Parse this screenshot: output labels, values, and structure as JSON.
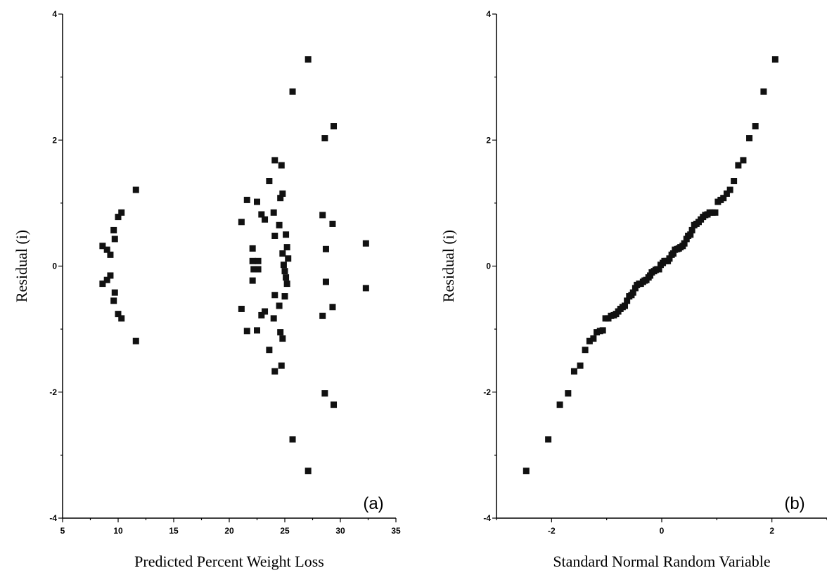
{
  "chart_data": [
    {
      "type": "scatter",
      "panel_label": "(a)",
      "xlabel": "Predicted Percent Weight Loss",
      "ylabel": "Residual (i)",
      "xlim": [
        5,
        35
      ],
      "ylim": [
        -4,
        4
      ],
      "xticks": [
        "5",
        "10",
        "15",
        "20",
        "25",
        "30",
        "35"
      ],
      "yticks": [
        "-4",
        "-2",
        "0",
        "2",
        "4"
      ],
      "points": [
        [
          8.6,
          0.32
        ],
        [
          9.0,
          0.26
        ],
        [
          9.3,
          0.18
        ],
        [
          9.6,
          0.57
        ],
        [
          9.7,
          0.43
        ],
        [
          10.0,
          0.78
        ],
        [
          10.3,
          0.85
        ],
        [
          11.6,
          1.21
        ],
        [
          8.6,
          -0.28
        ],
        [
          9.0,
          -0.22
        ],
        [
          9.3,
          -0.15
        ],
        [
          9.6,
          -0.55
        ],
        [
          9.7,
          -0.42
        ],
        [
          10.0,
          -0.76
        ],
        [
          10.3,
          -0.83
        ],
        [
          11.6,
          -1.19
        ],
        [
          21.1,
          0.7
        ],
        [
          21.6,
          1.05
        ],
        [
          22.1,
          0.28
        ],
        [
          22.1,
          0.08
        ],
        [
          22.2,
          -0.05
        ],
        [
          22.5,
          1.02
        ],
        [
          22.6,
          0.08
        ],
        [
          22.6,
          -0.05
        ],
        [
          22.9,
          0.82
        ],
        [
          23.2,
          0.74
        ],
        [
          23.6,
          1.35
        ],
        [
          24.0,
          0.85
        ],
        [
          24.1,
          0.48
        ],
        [
          24.1,
          1.68
        ],
        [
          24.5,
          0.65
        ],
        [
          24.6,
          1.08
        ],
        [
          24.7,
          1.6
        ],
        [
          24.8,
          1.15
        ],
        [
          24.8,
          0.2
        ],
        [
          24.9,
          0.02
        ],
        [
          25.0,
          -0.08
        ],
        [
          25.1,
          0.5
        ],
        [
          25.2,
          0.3
        ],
        [
          25.3,
          0.12
        ],
        [
          25.1,
          -0.18
        ],
        [
          21.1,
          -0.68
        ],
        [
          21.6,
          -1.03
        ],
        [
          22.1,
          -0.23
        ],
        [
          22.5,
          -1.02
        ],
        [
          22.9,
          -0.78
        ],
        [
          23.2,
          -0.72
        ],
        [
          23.6,
          -1.33
        ],
        [
          24.0,
          -0.83
        ],
        [
          24.1,
          -0.46
        ],
        [
          24.1,
          -1.67
        ],
        [
          24.5,
          -0.63
        ],
        [
          24.6,
          -1.05
        ],
        [
          24.7,
          -1.58
        ],
        [
          24.8,
          -1.15
        ],
        [
          25.0,
          -0.48
        ],
        [
          25.2,
          -0.28
        ],
        [
          25.7,
          2.77
        ],
        [
          25.7,
          -2.75
        ],
        [
          27.1,
          3.28
        ],
        [
          27.1,
          -3.25
        ],
        [
          28.4,
          0.81
        ],
        [
          28.4,
          -0.79
        ],
        [
          28.6,
          2.03
        ],
        [
          28.6,
          -2.02
        ],
        [
          28.7,
          0.27
        ],
        [
          28.7,
          -0.25
        ],
        [
          29.3,
          0.67
        ],
        [
          29.3,
          -0.65
        ],
        [
          29.4,
          2.22
        ],
        [
          29.4,
          -2.2
        ],
        [
          32.3,
          0.36
        ],
        [
          32.3,
          -0.35
        ]
      ]
    },
    {
      "type": "scatter",
      "panel_label": "(b)",
      "xlabel": "Standard Normal Random Variable",
      "ylabel": "Residual (i)",
      "xlim": [
        -3,
        3
      ],
      "ylim": [
        -4,
        4
      ],
      "xticks": [
        "-2",
        "0",
        "2"
      ],
      "yticks": [
        "-4",
        "-2",
        "0",
        "2",
        "4"
      ],
      "points": [
        [
          -2.46,
          -3.25
        ],
        [
          -2.06,
          -2.75
        ],
        [
          -1.85,
          -2.2
        ],
        [
          -1.7,
          -2.02
        ],
        [
          -1.59,
          -1.67
        ],
        [
          -1.48,
          -1.58
        ],
        [
          -1.39,
          -1.33
        ],
        [
          -1.31,
          -1.19
        ],
        [
          -1.24,
          -1.15
        ],
        [
          -1.18,
          -1.05
        ],
        [
          -1.12,
          -1.03
        ],
        [
          -1.07,
          -1.02
        ],
        [
          -1.02,
          -0.83
        ],
        [
          -0.97,
          -0.83
        ],
        [
          -0.92,
          -0.79
        ],
        [
          -0.87,
          -0.78
        ],
        [
          -0.83,
          -0.76
        ],
        [
          -0.79,
          -0.72
        ],
        [
          -0.75,
          -0.68
        ],
        [
          -0.71,
          -0.65
        ],
        [
          -0.67,
          -0.63
        ],
        [
          -0.63,
          -0.55
        ],
        [
          -0.59,
          -0.48
        ],
        [
          -0.55,
          -0.46
        ],
        [
          -0.52,
          -0.42
        ],
        [
          -0.48,
          -0.35
        ],
        [
          -0.45,
          -0.3
        ],
        [
          -0.41,
          -0.28
        ],
        [
          -0.38,
          -0.28
        ],
        [
          -0.34,
          -0.25
        ],
        [
          -0.31,
          -0.23
        ],
        [
          -0.28,
          -0.22
        ],
        [
          -0.24,
          -0.18
        ],
        [
          -0.21,
          -0.15
        ],
        [
          -0.18,
          -0.1
        ],
        [
          -0.14,
          -0.08
        ],
        [
          -0.11,
          -0.06
        ],
        [
          -0.08,
          -0.05
        ],
        [
          -0.05,
          -0.05
        ],
        [
          -0.02,
          0.02
        ],
        [
          0.02,
          0.05
        ],
        [
          0.05,
          0.08
        ],
        [
          0.08,
          0.08
        ],
        [
          0.11,
          0.08
        ],
        [
          0.14,
          0.12
        ],
        [
          0.18,
          0.18
        ],
        [
          0.21,
          0.2
        ],
        [
          0.24,
          0.26
        ],
        [
          0.28,
          0.27
        ],
        [
          0.31,
          0.28
        ],
        [
          0.34,
          0.3
        ],
        [
          0.38,
          0.32
        ],
        [
          0.41,
          0.36
        ],
        [
          0.45,
          0.43
        ],
        [
          0.48,
          0.48
        ],
        [
          0.52,
          0.5
        ],
        [
          0.55,
          0.57
        ],
        [
          0.59,
          0.65
        ],
        [
          0.63,
          0.67
        ],
        [
          0.67,
          0.7
        ],
        [
          0.71,
          0.74
        ],
        [
          0.75,
          0.78
        ],
        [
          0.79,
          0.81
        ],
        [
          0.83,
          0.82
        ],
        [
          0.87,
          0.85
        ],
        [
          0.92,
          0.85
        ],
        [
          0.97,
          0.85
        ],
        [
          1.02,
          1.02
        ],
        [
          1.07,
          1.05
        ],
        [
          1.12,
          1.08
        ],
        [
          1.18,
          1.15
        ],
        [
          1.24,
          1.21
        ],
        [
          1.31,
          1.35
        ],
        [
          1.39,
          1.6
        ],
        [
          1.48,
          1.68
        ],
        [
          1.59,
          2.03
        ],
        [
          1.7,
          2.22
        ],
        [
          1.85,
          2.77
        ],
        [
          2.06,
          3.28
        ]
      ]
    }
  ]
}
